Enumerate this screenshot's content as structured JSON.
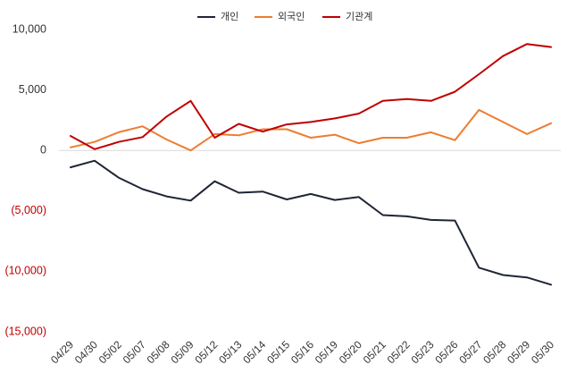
{
  "chart_data": {
    "type": "line",
    "categories": [
      "04/29",
      "04/30",
      "05/02",
      "05/07",
      "05/08",
      "05/09",
      "05/12",
      "05/13",
      "05/14",
      "05/15",
      "05/16",
      "05/19",
      "05/20",
      "05/21",
      "05/22",
      "05/23",
      "05/26",
      "05/27",
      "05/28",
      "05/29",
      "05/30"
    ],
    "series": [
      {
        "name": "개인",
        "color": "#1f2535",
        "values": [
          -1400,
          -850,
          -2250,
          -3200,
          -3800,
          -4150,
          -2550,
          -3500,
          -3400,
          -4050,
          -3600,
          -4100,
          -3850,
          -5350,
          -5450,
          -5750,
          -5800,
          -9700,
          -10300,
          -10500,
          -11100
        ]
      },
      {
        "name": "외국인",
        "color": "#ed7d31",
        "values": [
          250,
          700,
          1500,
          2000,
          900,
          0,
          1350,
          1250,
          1750,
          1750,
          1050,
          1300,
          600,
          1050,
          1050,
          1500,
          850,
          3350,
          2350,
          1350,
          2250
        ]
      },
      {
        "name": "기관계",
        "color": "#c00000",
        "values": [
          1200,
          100,
          700,
          1100,
          2800,
          4100,
          1050,
          2200,
          1550,
          2150,
          2350,
          2650,
          3050,
          4100,
          4250,
          4100,
          4850,
          6300,
          7800,
          8800,
          8550
        ]
      }
    ],
    "yticks": [
      10000,
      5000,
      0,
      -5000,
      -10000,
      -15000
    ],
    "ytick_labels": [
      "10,000",
      "5,000",
      "0",
      "(5,000)",
      "(10,000)",
      "(15,000)"
    ],
    "ylim": [
      -15000,
      10000
    ],
    "negative_tick_color": "#c00000",
    "positive_tick_color": "#333333",
    "zero_line_color": "#d9d9d9",
    "legend_position": "top-center",
    "title": "",
    "xlabel": "",
    "ylabel": ""
  }
}
